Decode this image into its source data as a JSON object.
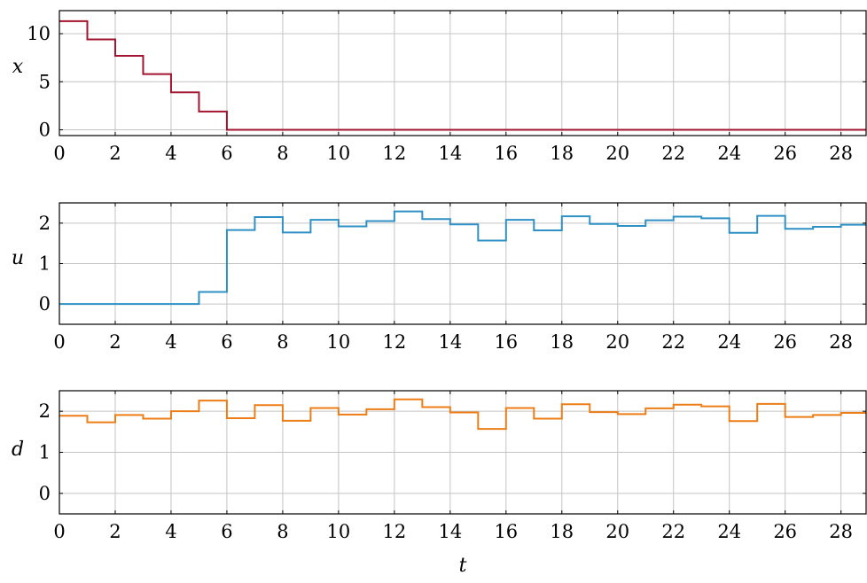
{
  "chart_data": [
    {
      "type": "line",
      "step": "post",
      "ylabel": "x",
      "xlim": [
        0,
        28.9
      ],
      "ylim": [
        -0.6,
        12.4
      ],
      "xticks": [
        0,
        2,
        4,
        6,
        8,
        10,
        12,
        14,
        16,
        18,
        20,
        22,
        24,
        26,
        28
      ],
      "yticks": [
        0,
        5,
        10
      ],
      "grid": true,
      "color": "#a2142f",
      "series": [
        {
          "x": [
            0,
            1,
            2,
            3,
            4,
            5,
            6,
            7,
            8,
            9,
            10,
            11,
            12,
            13,
            14,
            15,
            16,
            17,
            18,
            19,
            20,
            21,
            22,
            23,
            24,
            25,
            26,
            27,
            28,
            29
          ],
          "y": [
            11.3,
            9.4,
            7.7,
            5.8,
            3.9,
            1.9,
            0,
            0,
            0,
            0,
            0,
            0,
            0,
            0,
            0,
            0,
            0,
            0,
            0,
            0,
            0,
            0,
            0,
            0,
            0,
            0,
            0,
            0,
            0,
            0
          ]
        }
      ]
    },
    {
      "type": "line",
      "step": "post",
      "ylabel": "u",
      "xlim": [
        0,
        28.9
      ],
      "ylim": [
        -0.5,
        2.5
      ],
      "xticks": [
        0,
        2,
        4,
        6,
        8,
        10,
        12,
        14,
        16,
        18,
        20,
        22,
        24,
        26,
        28
      ],
      "yticks": [
        0,
        1,
        2
      ],
      "grid": true,
      "color": "#2e90c4",
      "series": [
        {
          "x": [
            0,
            1,
            2,
            3,
            4,
            5,
            6,
            7,
            8,
            9,
            10,
            11,
            12,
            13,
            14,
            15,
            16,
            17,
            18,
            19,
            20,
            21,
            22,
            23,
            24,
            25,
            26,
            27,
            28,
            29
          ],
          "y": [
            0,
            0,
            0,
            0,
            0,
            0.3,
            1.83,
            2.15,
            1.77,
            2.08,
            1.92,
            2.05,
            2.29,
            2.1,
            1.97,
            1.57,
            2.08,
            1.82,
            2.17,
            1.98,
            1.93,
            2.07,
            2.16,
            2.12,
            1.76,
            2.18,
            1.86,
            1.91,
            1.96,
            1.96
          ]
        }
      ]
    },
    {
      "type": "line",
      "step": "post",
      "ylabel": "d",
      "xlabel": "t",
      "xlim": [
        0,
        28.9
      ],
      "ylim": [
        -0.5,
        2.5
      ],
      "xticks": [
        0,
        2,
        4,
        6,
        8,
        10,
        12,
        14,
        16,
        18,
        20,
        22,
        24,
        26,
        28
      ],
      "yticks": [
        0,
        1,
        2
      ],
      "grid": true,
      "color": "#ed7d16",
      "series": [
        {
          "x": [
            0,
            1,
            2,
            3,
            4,
            5,
            6,
            7,
            8,
            9,
            10,
            11,
            12,
            13,
            14,
            15,
            16,
            17,
            18,
            19,
            20,
            21,
            22,
            23,
            24,
            25,
            26,
            27,
            28,
            29
          ],
          "y": [
            1.89,
            1.73,
            1.91,
            1.82,
            2.0,
            2.26,
            1.83,
            2.15,
            1.77,
            2.08,
            1.92,
            2.05,
            2.29,
            2.1,
            1.97,
            1.57,
            2.08,
            1.82,
            2.17,
            1.98,
            1.93,
            2.07,
            2.16,
            2.12,
            1.76,
            2.18,
            1.86,
            1.91,
            1.96,
            1.96
          ]
        }
      ]
    }
  ]
}
